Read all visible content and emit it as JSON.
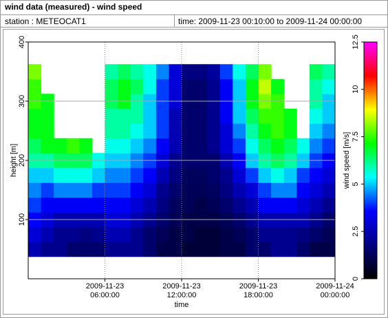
{
  "header": {
    "title": "wind data (measured) - wind speed",
    "station": "station : METEOCAT1",
    "time": "time: 2009-11-23 00:10:00 to 2009-11-24 00:00:00"
  },
  "chart_data": {
    "type": "heatmap",
    "xlabel": "time",
    "ylabel": "height [m]",
    "colorbar_label": "wind speed [m/s]",
    "x": [
      "2009-11-23 00:30:00",
      "2009-11-23 01:30:00",
      "2009-11-23 02:30:00",
      "2009-11-23 03:30:00",
      "2009-11-23 04:30:00",
      "2009-11-23 05:30:00",
      "2009-11-23 06:30:00",
      "2009-11-23 07:30:00",
      "2009-11-23 08:30:00",
      "2009-11-23 09:30:00",
      "2009-11-23 10:30:00",
      "2009-11-23 11:30:00",
      "2009-11-23 12:30:00",
      "2009-11-23 13:30:00",
      "2009-11-23 14:30:00",
      "2009-11-23 15:30:00",
      "2009-11-23 16:30:00",
      "2009-11-23 17:30:00",
      "2009-11-23 18:30:00",
      "2009-11-23 19:30:00",
      "2009-11-23 20:30:00",
      "2009-11-23 21:30:00",
      "2009-11-23 22:30:00",
      "2009-11-23 23:30:00"
    ],
    "y": [
      50,
      75,
      100,
      125,
      150,
      175,
      200,
      225,
      250,
      275,
      300,
      325,
      350
    ],
    "z": [
      [
        2.5,
        2,
        2,
        1.5,
        1.5,
        1.5,
        2,
        2,
        2,
        1.5,
        1,
        1,
        0.8,
        0.8,
        0.8,
        1,
        1,
        1.5,
        1.5,
        2,
        2,
        1.5,
        1,
        1
      ],
      [
        3,
        2.5,
        2,
        2,
        1.8,
        2,
        2.5,
        2.5,
        2,
        1.5,
        1.2,
        1,
        1,
        0.8,
        0.8,
        1,
        1.2,
        1.5,
        2,
        2,
        2,
        1.8,
        1.5,
        1.2
      ],
      [
        3.5,
        3,
        2.5,
        2.5,
        2.5,
        2.5,
        3,
        3,
        2.5,
        2,
        1.5,
        1.2,
        1,
        1,
        1,
        1.2,
        1.5,
        2,
        2.5,
        2.5,
        2.5,
        2.5,
        2,
        1.5
      ],
      [
        4,
        3.5,
        3.5,
        3.5,
        3.5,
        3.5,
        3.5,
        3.5,
        3,
        2.5,
        1.8,
        1.3,
        1.2,
        1,
        1.2,
        1.5,
        2,
        2.5,
        3.5,
        3.5,
        3.5,
        3,
        2.5,
        2
      ],
      [
        4.5,
        4,
        4.5,
        4.5,
        4.5,
        4,
        4,
        4,
        3.5,
        3,
        2,
        1.5,
        1.2,
        1.2,
        1.3,
        1.8,
        2.5,
        3,
        4,
        4.5,
        4.5,
        3.5,
        3,
        2.5
      ],
      [
        5,
        5,
        5.5,
        5.5,
        5.5,
        5,
        4.5,
        4.5,
        4,
        3.5,
        2.5,
        1.8,
        1.3,
        1.3,
        1.5,
        2,
        3,
        4,
        5,
        5.5,
        5,
        4,
        3.5,
        3
      ],
      [
        6,
        6,
        6.5,
        6.5,
        6.5,
        5.5,
        5,
        5,
        4.5,
        4,
        3,
        2,
        1.5,
        1.5,
        1.5,
        2.5,
        3.5,
        5,
        6,
        6.5,
        6,
        5,
        4,
        3.5
      ],
      [
        6.5,
        7,
        7,
        7.5,
        7,
        null,
        5.5,
        5.5,
        5,
        4.5,
        3.5,
        2.5,
        1.5,
        1.5,
        2,
        3,
        4,
        5.5,
        6.5,
        7,
        6.5,
        5.5,
        4.5,
        4
      ],
      [
        7,
        7,
        null,
        null,
        null,
        null,
        6,
        6,
        5.5,
        5,
        4,
        2.5,
        1.5,
        1.5,
        2,
        3,
        4.5,
        6,
        7,
        7.5,
        7,
        null,
        5,
        4.5
      ],
      [
        7,
        7,
        null,
        null,
        null,
        null,
        6,
        6,
        6,
        5,
        4,
        2.5,
        1.5,
        1.5,
        2,
        3.5,
        5,
        6.5,
        7.5,
        7.5,
        7,
        null,
        5.5,
        5
      ],
      [
        7.5,
        7,
        null,
        null,
        null,
        null,
        6.5,
        7,
        6,
        5,
        4,
        3,
        1.5,
        1.5,
        2,
        3.5,
        5,
        7,
        8,
        7.5,
        null,
        null,
        6,
        5
      ],
      [
        7.5,
        null,
        null,
        null,
        null,
        null,
        6.5,
        7,
        6.5,
        5.5,
        4,
        3,
        1.5,
        1.5,
        2,
        3.5,
        5,
        7,
        8.5,
        7,
        null,
        null,
        6,
        5.5
      ],
      [
        8,
        null,
        null,
        null,
        null,
        null,
        6,
        6.5,
        6,
        5.5,
        4.5,
        3,
        1.8,
        1.8,
        2.2,
        4,
        5.5,
        6.5,
        8,
        null,
        null,
        null,
        6.5,
        6
      ]
    ],
    "xlim": [
      "2009-11-23 00:00:00",
      "2009-11-24 00:00:00"
    ],
    "xticks": [
      "2009-11-23 06:00:00",
      "2009-11-23 12:00:00",
      "2009-11-23 18:00:00",
      "2009-11-24 00:00:00"
    ],
    "ylim": [
      0,
      400
    ],
    "yticks": [
      100,
      200,
      300,
      400
    ],
    "clim": [
      0,
      12.5
    ],
    "cticks": [
      0,
      2.5,
      5,
      7.5,
      10,
      12.5
    ],
    "colorscale": [
      "#000000",
      "#000080",
      "#0000ff",
      "#00ffff",
      "#00ff00",
      "#ffff00",
      "#ff0000",
      "#ff00ff"
    ],
    "grid": true
  }
}
